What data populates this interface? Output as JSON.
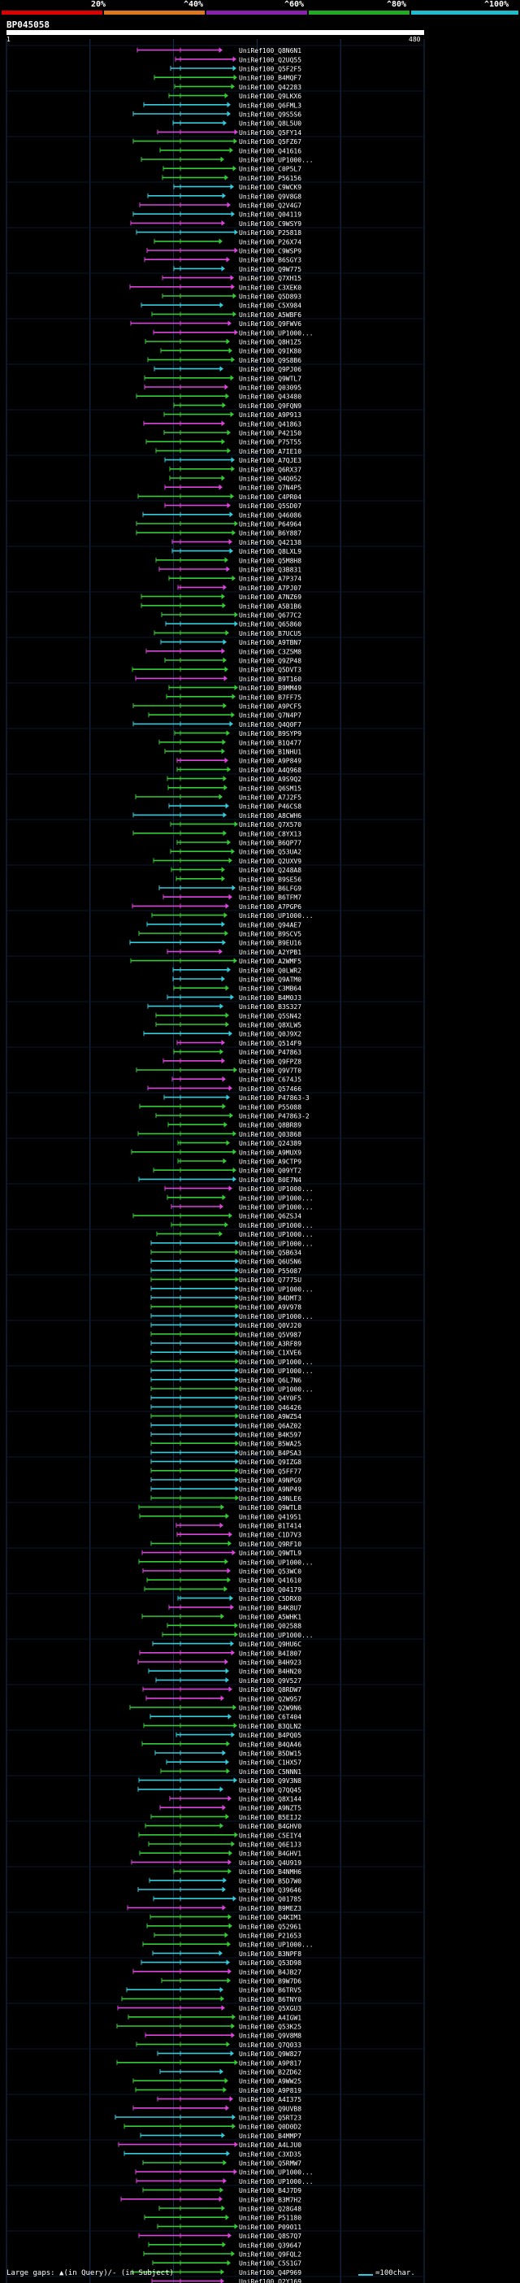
{
  "legend": {
    "percent_labels": [
      "20%",
      "^40%",
      "^60%",
      "^80%",
      "^100%"
    ],
    "colors": [
      "#dd0000",
      "#dd7722",
      "#8822aa",
      "#22aa22",
      "#22bbcc"
    ]
  },
  "query": {
    "id": "BP045058",
    "start": "1",
    "end": "480"
  },
  "hits": [
    "UniRef100_Q8N6N1",
    "UniRef100_Q2UQ55",
    "UniRef100_Q5F2F5",
    "UniRef100_B4MQF7",
    "UniRef100_Q42283",
    "UniRef100_Q9LKX6",
    "UniRef100_Q6FML3",
    "UniRef100_Q9S5S6",
    "UniRef100_Q8L5U0",
    "UniRef100_Q5FY14",
    "UniRef100_Q5FZ67",
    "UniRef100_Q41616",
    "UniRef100_UP1000...",
    "UniRef100_C0P5L7",
    "UniRef100_P56156",
    "UniRef100_C9WCK9",
    "UniRef100_Q9V8G8",
    "UniRef100_Q2V4G7",
    "UniRef100_Q04119",
    "UniRef100_C9WSY9",
    "UniRef100_P25818",
    "UniRef100_P26X74",
    "UniRef100_C9WSP9",
    "UniRef100_B6SGY3",
    "UniRef100_Q9W775",
    "UniRef100_Q7XH15",
    "UniRef100_C3XEK0",
    "UniRef100_Q5D893",
    "UniRef100_C5X984",
    "UniRef100_A5WBF6",
    "UniRef100_Q9FWV6",
    "UniRef100_UP1000...",
    "UniRef100_Q8H1Z5",
    "UniRef100_Q9IK80",
    "UniRef100_Q9S8B6",
    "UniRef100_Q9PJ06",
    "UniRef100_Q9WTL7",
    "UniRef100_Q03095",
    "UniRef100_Q43480",
    "UniRef100_Q9FQN9",
    "UniRef100_A9P913",
    "UniRef100_Q41863",
    "UniRef100_P42150",
    "UniRef100_P75T55",
    "UniRef100_A7IE10",
    "UniRef100_A7QJE3",
    "UniRef100_Q6RX37",
    "UniRef100_Q4Q052",
    "UniRef100_Q7N4P5",
    "UniRef100_C4PR04",
    "UniRef100_Q5SD07",
    "UniRef100_Q46086",
    "UniRef100_P64964",
    "UniRef100_B6Y887",
    "UniRef100_Q42138",
    "UniRef100_Q8LXL9",
    "UniRef100_Q5M8H8",
    "UniRef100_Q3B831",
    "UniRef100_A7P374",
    "UniRef100_A7PJ07",
    "UniRef100_A7NZ69",
    "UniRef100_A5B1B6",
    "UniRef100_Q677C2",
    "UniRef100_Q65860",
    "UniRef100_B7UCU5",
    "UniRef100_A9TBN7",
    "UniRef100_C3Z5M8",
    "UniRef100_Q9ZP48",
    "UniRef100_Q5DVT3",
    "UniRef100_B9T160",
    "UniRef100_B9MM49",
    "UniRef100_B7FF75",
    "UniRef100_A9PCF5",
    "UniRef100_Q7N4P7",
    "UniRef100_Q4Q0F7",
    "UniRef100_B9SYP9",
    "UniRef100_B1Q477",
    "UniRef100_B1NHU1",
    "UniRef100_A9P849",
    "UniRef100_A4Q968",
    "UniRef100_A9S9Q2",
    "UniRef100_Q6SM15",
    "UniRef100_A7J2F5",
    "UniRef100_P46CS8",
    "UniRef100_A8CWH6",
    "UniRef100_Q7X570",
    "UniRef100_C8YX13",
    "UniRef100_B6QP77",
    "UniRef100_Q53UA2",
    "UniRef100_Q2UXV9",
    "UniRef100_Q248A8",
    "UniRef100_B9SE56",
    "UniRef100_B6LFG9",
    "UniRef100_B6TFM7",
    "UniRef100_A7PGP6",
    "UniRef100_UP1000...",
    "UniRef100_Q94AE7",
    "UniRef100_B9SCV5",
    "UniRef100_B9EU16",
    "UniRef100_A2YPB1",
    "UniRef100_A2WMF5",
    "UniRef100_Q0LWR2",
    "UniRef100_Q9ATM0",
    "UniRef100_C3MB64",
    "UniRef100_B4M0J3",
    "UniRef100_B3S327",
    "UniRef100_Q5SN42",
    "UniRef100_Q8XLW5",
    "UniRef100_Q0J9X2",
    "UniRef100_Q514F9",
    "UniRef100_P47863",
    "UniRef100_Q9FPZ8",
    "UniRef100_Q9V7T0",
    "UniRef100_C674J5",
    "UniRef100_Q57466",
    "UniRef100_P47863-3",
    "UniRef100_P55088",
    "UniRef100_P47863-2",
    "UniRef100_Q8BR89",
    "UniRef100_Q03868",
    "UniRef100_Q24389",
    "UniRef100_A9MUX9",
    "UniRef100_A9CTP9",
    "UniRef100_Q09YT2",
    "UniRef100_B0E7N4",
    "UniRef100_UP1000...",
    "UniRef100_UP1000...",
    "UniRef100_UP1000...",
    "UniRef100_Q6ZSJ4",
    "UniRef100_UP1000...",
    "UniRef100_UP1000...",
    "UniRef100_UP1000...",
    "UniRef100_Q5B634",
    "UniRef100_Q6U5N6",
    "UniRef100_P55087",
    "UniRef100_Q7775U",
    "UniRef100_UP1000...",
    "UniRef100_B4DMT3",
    "UniRef100_A9V978",
    "UniRef100_UP1000...",
    "UniRef100_Q0VJ20",
    "UniRef100_Q5V987",
    "UniRef100_A3RF89",
    "UniRef100_C1XVE6",
    "UniRef100_UP1000...",
    "UniRef100_UP1000...",
    "UniRef100_Q6L7N6",
    "UniRef100_UP1000...",
    "UniRef100_Q4Y0F5",
    "UniRef100_Q46426",
    "UniRef100_A9WZ54",
    "UniRef100_Q6AZ02",
    "UniRef100_B4K597",
    "UniRef100_B5WA25",
    "UniRef100_B4PSA3",
    "UniRef100_Q9IZG8",
    "UniRef100_Q5FF77",
    "UniRef100_A9NPG9",
    "UniRef100_A9NP49",
    "UniRef100_A9NLE6",
    "UniRef100_Q9WTL8",
    "UniRef100_Q41951",
    "UniRef100_B1T414",
    "UniRef100_C1D7V3",
    "UniRef100_Q9RF10",
    "UniRef100_Q9WTL9",
    "UniRef100_UP1000...",
    "UniRef100_Q53WC0",
    "UniRef100_Q41610",
    "UniRef100_Q04179",
    "UniRef100_C5DRX0",
    "UniRef100_B4K8U7",
    "UniRef100_A5WHK1",
    "UniRef100_Q02588",
    "UniRef100_UP1000...",
    "UniRef100_Q9HU6C",
    "UniRef100_B4I807",
    "UniRef100_B4H923",
    "UniRef100_B4HN20",
    "UniRef100_Q9V527",
    "UniRef100_Q8RDW7",
    "UniRef100_Q2W957",
    "UniRef100_Q2W9N6",
    "UniRef100_C6T404",
    "UniRef100_B3QLN2",
    "UniRef100_B4PQ05",
    "UniRef100_B4QA46",
    "UniRef100_B5DW15",
    "UniRef100_C1HX57",
    "UniRef100_C5NNN1",
    "UniRef100_Q9V3N8",
    "UniRef100_Q7QQ45",
    "UniRef100_Q8X144",
    "UniRef100_A9NZT5",
    "UniRef100_B5EIJ2",
    "UniRef100_B4GHV0",
    "UniRef100_C5EIY4",
    "UniRef100_Q6E1J3",
    "UniRef100_B4GHV1",
    "UniRef100_Q4U919",
    "UniRef100_B4NMH6",
    "UniRef100_B5D7W0",
    "UniRef100_Q39646",
    "UniRef100_Q01785",
    "UniRef100_B9MEZ3",
    "UniRef100_Q4KIM1",
    "UniRef100_Q52961",
    "UniRef100_P21653",
    "UniRef100_UP1000...",
    "UniRef100_B3NPF8",
    "UniRef100_Q53D98",
    "UniRef100_B4JB27",
    "UniRef100_B9W7D6",
    "UniRef100_B6TRV5",
    "UniRef100_B6TNY0",
    "UniRef100_Q5XGU3",
    "UniRef100_A4IGW1",
    "UniRef100_Q53K25",
    "UniRef100_Q9V8M8",
    "UniRef100_Q7Q033",
    "UniRef100_Q9W827",
    "UniRef100_A9P817",
    "UniRef100_B2ZD62",
    "UniRef100_A9WW25",
    "UniRef100_A9P819",
    "UniRef100_A4I375",
    "UniRef100_Q9UVB8",
    "UniRef100_Q5RT23",
    "UniRef100_Q0D0D2",
    "UniRef100_B4MMP7",
    "UniRef100_A4LJU0",
    "UniRef100_C3XD35",
    "UniRef100_Q5RMW7",
    "UniRef100_UP1000...",
    "UniRef100_UP1000...",
    "UniRef100_B4J7D9",
    "UniRef100_B3M7H2",
    "UniRef100_Q28G48",
    "UniRef100_P51180",
    "UniRef100_P09011",
    "UniRef100_Q8S7Q7",
    "UniRef100_Q39647",
    "UniRef100_Q9FQL2",
    "UniRef100_C5S1G7",
    "UniRef100_Q4P969",
    "UniRef100_Q2Y169",
    "UniRef100_B3W3F9"
  ],
  "footer": {
    "gaps_text": "Large gaps: ▲(in Query)/- (in Subject)",
    "scale_text": "=100char."
  }
}
